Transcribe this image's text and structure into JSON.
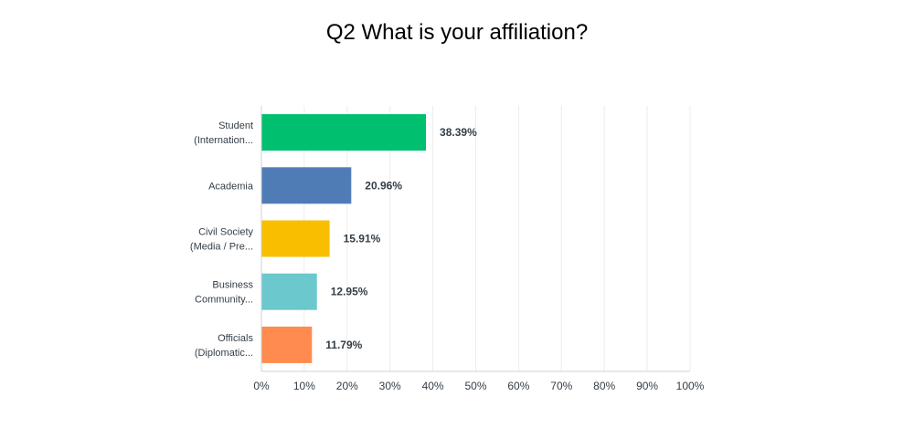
{
  "chart_data": {
    "type": "bar",
    "orientation": "horizontal",
    "title": "Q2 What is your affiliation?",
    "categories": [
      [
        "Student",
        "(Internation..."
      ],
      [
        "Academia"
      ],
      [
        "Civil Society",
        "(Media / Pre..."
      ],
      [
        "Business",
        "Community..."
      ],
      [
        "Officials",
        "(Diplomatic..."
      ]
    ],
    "values": [
      38.39,
      20.96,
      15.91,
      12.95,
      11.79
    ],
    "value_labels": [
      "38.39%",
      "20.96%",
      "15.91%",
      "12.95%",
      "11.79%"
    ],
    "colors": [
      "#00bf6f",
      "#507cb6",
      "#f9be00",
      "#6bc8cd",
      "#ff8b4f"
    ],
    "xlim": [
      0,
      100
    ],
    "x_ticks": [
      "0%",
      "10%",
      "20%",
      "30%",
      "40%",
      "50%",
      "60%",
      "70%",
      "80%",
      "90%",
      "100%"
    ],
    "grid": true,
    "xlabel": "",
    "ylabel": ""
  }
}
